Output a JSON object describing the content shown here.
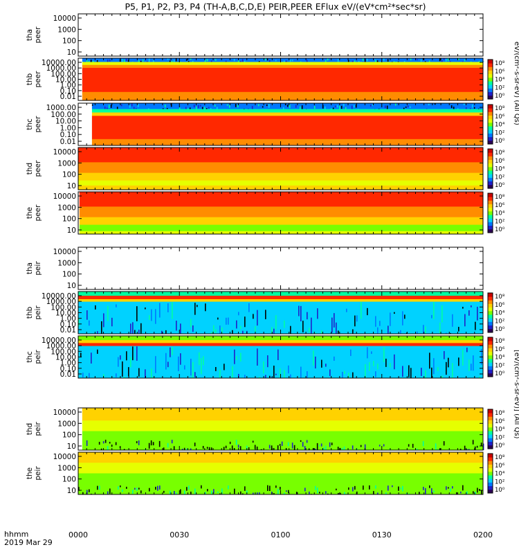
{
  "title": "P5, P1, P2, P3, P4 (TH-A,B,C,D,E) PEIR,PEER EFlux eV/(eV*cm²*sec*sr)",
  "time_axis": {
    "label_line1": "hhmm",
    "label_line2": "2019 Mar 29",
    "ticks": [
      "0000",
      "0030",
      "0100",
      "0130",
      "0200"
    ]
  },
  "colors": {
    "frame": "#000000",
    "background": "#ffffff",
    "colormap": [
      "#2b0056",
      "#2020c8",
      "#0078ff",
      "#00d2ff",
      "#00ffa0",
      "#78ff00",
      "#e6ff00",
      "#ffd200",
      "#ff8c00",
      "#ff2800",
      "#c80000"
    ]
  },
  "colorbar_labels": {
    "peer": "eV/(cm²-s-sr-eV) (All Qs)",
    "peir": "[eV/(cm²-s-sr-eV)] (All Qs)"
  },
  "chart_data": [
    {
      "type": "heatmap",
      "panel": "tha-peer",
      "ylabel": [
        "tha",
        "peer"
      ],
      "yticks": [
        "10000",
        "1000",
        "100",
        "10"
      ],
      "has_data": false,
      "colorbar": false
    },
    {
      "type": "heatmap",
      "panel": "thb-peer",
      "ylabel": [
        "thb",
        "peer"
      ],
      "yticks": [
        "10000.00",
        "1000.00",
        "100.00",
        "10.00",
        "1.00",
        "0.10",
        "0.01"
      ],
      "has_data": true,
      "data_start_fraction": 0.01,
      "bands": [
        {
          "from": 0.0,
          "to": 0.09,
          "style": "noise_blue"
        },
        {
          "from": 0.09,
          "to": 0.16,
          "color": "#e6ff00"
        },
        {
          "from": 0.16,
          "to": 0.23,
          "color": "#ff8c00"
        },
        {
          "from": 0.23,
          "to": 0.8,
          "color": "#ff2800"
        },
        {
          "from": 0.8,
          "to": 1.0,
          "color": "#ff8c00"
        }
      ],
      "colorbar": true,
      "colorbar_ticks": [
        "10⁸",
        "10⁶",
        "10⁴",
        "10²",
        "10⁰"
      ]
    },
    {
      "type": "heatmap",
      "panel": "thc-peer",
      "ylabel": [
        "thc",
        "peer"
      ],
      "yticks": [
        "1000.00",
        "100.00",
        "10.00",
        "1.00",
        "0.10",
        "0.01"
      ],
      "has_data": true,
      "data_start_fraction": 0.034,
      "bands": [
        {
          "from": 0.0,
          "to": 0.14,
          "style": "noise_blue"
        },
        {
          "from": 0.14,
          "to": 0.22,
          "color": "#00ffa0"
        },
        {
          "from": 0.22,
          "to": 0.3,
          "color": "#ffd200"
        },
        {
          "from": 0.3,
          "to": 0.85,
          "color": "#ff2800"
        },
        {
          "from": 0.85,
          "to": 1.0,
          "color": "#ff8c00"
        }
      ],
      "colorbar": true,
      "colorbar_ticks": [
        "10⁸",
        "10⁶",
        "10⁴",
        "10²",
        "10⁰"
      ]
    },
    {
      "type": "heatmap",
      "panel": "thd-peer",
      "ylabel": [
        "thd",
        "peer"
      ],
      "yticks": [
        "10000",
        "1000",
        "100",
        "10"
      ],
      "has_data": true,
      "data_start_fraction": 0.0,
      "bands": [
        {
          "from": 0.0,
          "to": 0.35,
          "color": "#ff2800"
        },
        {
          "from": 0.35,
          "to": 0.6,
          "color": "#ff8c00"
        },
        {
          "from": 0.6,
          "to": 0.78,
          "color": "#ffd200"
        },
        {
          "from": 0.78,
          "to": 0.9,
          "color": "#e6ff00"
        },
        {
          "from": 0.9,
          "to": 1.0,
          "color": "#ffd200"
        }
      ],
      "colorbar": true,
      "colorbar_ticks": [
        "10⁸",
        "10⁶",
        "10⁴",
        "10²",
        "10⁰"
      ]
    },
    {
      "type": "heatmap",
      "panel": "the-peer",
      "ylabel": [
        "the",
        "peer"
      ],
      "yticks": [
        "10000",
        "1000",
        "100",
        "10"
      ],
      "has_data": true,
      "data_start_fraction": 0.003,
      "bands": [
        {
          "from": 0.0,
          "to": 0.35,
          "color": "#ff2800"
        },
        {
          "from": 0.35,
          "to": 0.6,
          "color": "#ff8c00"
        },
        {
          "from": 0.6,
          "to": 0.78,
          "color": "#ffd200"
        },
        {
          "from": 0.78,
          "to": 0.93,
          "color": "#78ff00"
        },
        {
          "from": 0.93,
          "to": 1.0,
          "color": "#e6ff00"
        }
      ],
      "colorbar": true,
      "colorbar_ticks": [
        "10⁸",
        "10⁶",
        "10⁴",
        "10²",
        "10⁰"
      ]
    },
    {
      "type": "heatmap",
      "panel": "tha-peir",
      "ylabel": [
        "tha",
        "peir"
      ],
      "yticks": [
        "10000",
        "1000",
        "100",
        "10"
      ],
      "has_data": false,
      "colorbar": false
    },
    {
      "type": "heatmap",
      "panel": "thb-peir",
      "ylabel": [
        "thb",
        "peir"
      ],
      "yticks": [
        "10000.00",
        "1000.00",
        "100.00",
        "10.00",
        "1.00",
        "0.10",
        "0.01"
      ],
      "has_data": true,
      "data_start_fraction": 0.0,
      "bands": [
        {
          "from": 0.0,
          "to": 0.1,
          "color": "#00ffa0"
        },
        {
          "from": 0.1,
          "to": 0.18,
          "color": "#ff2800"
        },
        {
          "from": 0.18,
          "to": 0.24,
          "color": "#ffd200"
        },
        {
          "from": 0.24,
          "to": 1.0,
          "style": "noise_cyan"
        }
      ],
      "colorbar": true,
      "colorbar_ticks": [
        "10⁸",
        "10⁶",
        "10⁴",
        "10²",
        "10⁰"
      ]
    },
    {
      "type": "heatmap",
      "panel": "thc-peir",
      "ylabel": [
        "thc",
        "peir"
      ],
      "yticks": [
        "10000.00",
        "1000.00",
        "100.00",
        "10.00",
        "1.00",
        "0.10",
        "0.01"
      ],
      "has_data": true,
      "data_start_fraction": 0.0,
      "bands": [
        {
          "from": 0.0,
          "to": 0.1,
          "color": "#78ff00"
        },
        {
          "from": 0.1,
          "to": 0.17,
          "color": "#ffd200"
        },
        {
          "from": 0.17,
          "to": 0.24,
          "color": "#ff2800"
        },
        {
          "from": 0.24,
          "to": 1.0,
          "style": "noise_cyan"
        }
      ],
      "colorbar": true,
      "colorbar_ticks": [
        "10⁸",
        "10⁶",
        "10⁴",
        "10²",
        "10⁰"
      ]
    },
    {
      "type": "heatmap",
      "panel": "thd-peir",
      "ylabel": [
        "thd",
        "peir"
      ],
      "yticks": [
        "10000",
        "1000",
        "100",
        "10"
      ],
      "has_data": true,
      "data_start_fraction": 0.01,
      "bands": [
        {
          "from": 0.0,
          "to": 0.3,
          "color": "#ffd200"
        },
        {
          "from": 0.3,
          "to": 0.55,
          "color": "#e6ff00"
        },
        {
          "from": 0.55,
          "to": 0.75,
          "color": "#78ff00"
        },
        {
          "from": 0.75,
          "to": 1.0,
          "style": "noise_dark"
        }
      ],
      "colorbar": true,
      "colorbar_ticks": [
        "10⁸",
        "10⁶",
        "10⁴",
        "10²",
        "10⁰"
      ]
    },
    {
      "type": "heatmap",
      "panel": "the-peir",
      "ylabel": [
        "the",
        "peir"
      ],
      "yticks": [
        "10000",
        "1000",
        "100",
        "10"
      ],
      "has_data": true,
      "data_start_fraction": 0.0,
      "bands": [
        {
          "from": 0.0,
          "to": 0.25,
          "color": "#ffd200"
        },
        {
          "from": 0.25,
          "to": 0.5,
          "color": "#e6ff00"
        },
        {
          "from": 0.5,
          "to": 0.78,
          "color": "#78ff00"
        },
        {
          "from": 0.78,
          "to": 1.0,
          "style": "noise_dark"
        }
      ],
      "colorbar": true,
      "colorbar_ticks": [
        "10⁸",
        "10⁶",
        "10⁴",
        "10²",
        "10⁰"
      ]
    }
  ]
}
